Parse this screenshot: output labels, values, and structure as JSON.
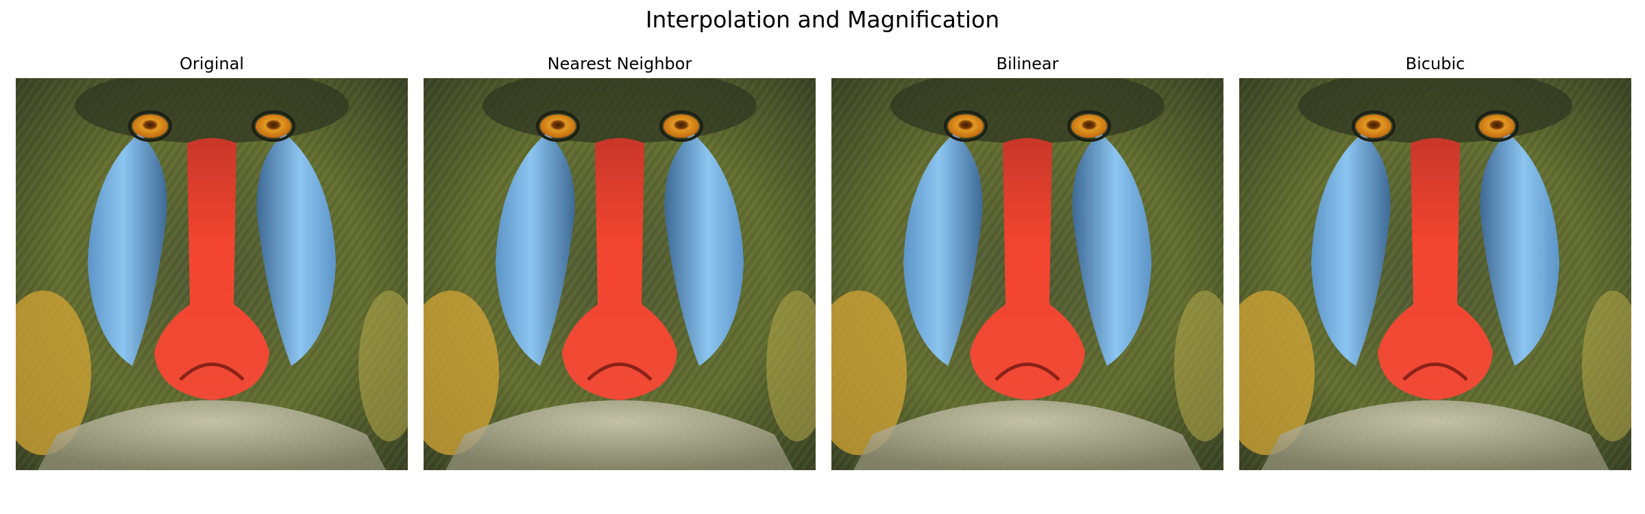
{
  "figure": {
    "title": "Interpolation and Magnification",
    "panels": [
      {
        "title": "Original",
        "image": "mandrill-face-photo",
        "sharpness": "soft"
      },
      {
        "title": "Nearest Neighbor",
        "image": "mandrill-face-photo",
        "sharpness": "sharp"
      },
      {
        "title": "Bilinear",
        "image": "mandrill-face-photo",
        "sharpness": "smooth"
      },
      {
        "title": "Bicubic",
        "image": "mandrill-face-photo",
        "sharpness": "crisp"
      }
    ]
  },
  "colors": {
    "fur_green": "#5f6a2e",
    "fur_dark": "#2d3222",
    "fur_yellow": "#d3a632",
    "cheek_blue": "#79b6e6",
    "cheek_shadow": "#34557a",
    "nose_red": "#f2402c",
    "eye_orange": "#e2901d",
    "beard_white": "#e6e2ce"
  }
}
